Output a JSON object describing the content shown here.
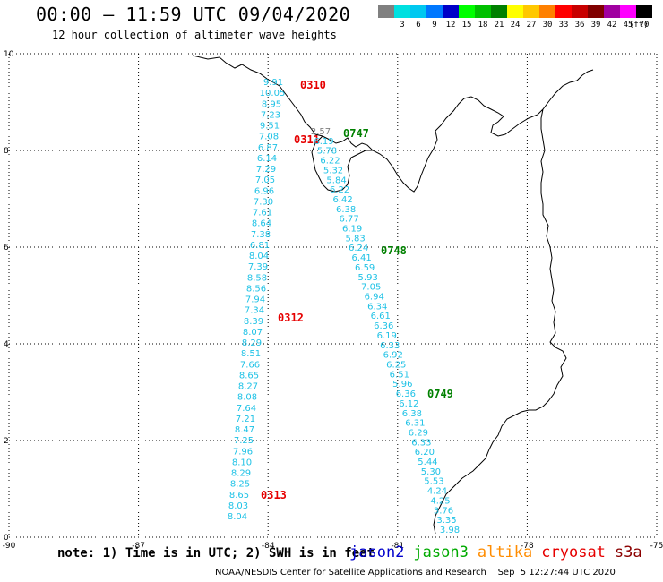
{
  "header": {
    "title": "00:00 — 11:59 UTC 09/04/2020",
    "subtitle": "12 hour collection of altimeter wave heights"
  },
  "legend": {
    "unit": "(ft)",
    "bins": [
      {
        "label": "",
        "color": "#808080"
      },
      {
        "label": "3",
        "color": "#00e0e0"
      },
      {
        "label": "6",
        "color": "#00c8f0"
      },
      {
        "label": "9",
        "color": "#0078ff"
      },
      {
        "label": "12",
        "color": "#0000c8"
      },
      {
        "label": "15",
        "color": "#00ff00"
      },
      {
        "label": "18",
        "color": "#00c000"
      },
      {
        "label": "21",
        "color": "#008000"
      },
      {
        "label": "24",
        "color": "#ffff00"
      },
      {
        "label": "27",
        "color": "#ffc800"
      },
      {
        "label": "30",
        "color": "#ff8000"
      },
      {
        "label": "33",
        "color": "#ff0000"
      },
      {
        "label": "36",
        "color": "#c80000"
      },
      {
        "label": "39",
        "color": "#800000"
      },
      {
        "label": "42",
        "color": "#a000a0"
      },
      {
        "label": "45",
        "color": "#ff00ff"
      },
      {
        "label": "70",
        "color": "#000000"
      }
    ]
  },
  "map": {
    "lon_range": [
      -90,
      -75
    ],
    "lat_range": [
      0,
      10
    ],
    "lon_ticks": [
      "-90",
      "-87",
      "-84",
      "-81",
      "-78",
      "-75"
    ],
    "lat_ticks": [
      "10",
      "8",
      "6",
      "4",
      "2",
      "0"
    ],
    "grid": true
  },
  "tracks": [
    {
      "satellite": "jason3",
      "color": "#1fc2e6",
      "passes": [
        {
          "time": "0310",
          "label_color": "#e60000"
        },
        {
          "time": "0311",
          "label_color": "#e60000"
        },
        {
          "time": "0312",
          "label_color": "#e60000"
        },
        {
          "time": "0313",
          "label_color": "#e60000"
        }
      ],
      "values": [
        "9.91",
        "10.05",
        "8.95",
        "7.23",
        "9.51",
        "7.08",
        "6.87",
        "6.14",
        "7.29",
        "7.05",
        "6.96",
        "7.30",
        "7.61",
        "8.64",
        "7.38",
        "6.81",
        "8.04",
        "7.39",
        "8.58",
        "8.56",
        "7.94",
        "7.34",
        "8.39",
        "8.07",
        "8.29",
        "8.51",
        "7.66",
        "8.65",
        "8.27",
        "8.08",
        "7.64",
        "7.21",
        "8.47",
        "7.25",
        "7.96",
        "8.10",
        "8.29",
        "8.25",
        "8.65",
        "8.03",
        "8.04"
      ]
    },
    {
      "satellite": "cryosat",
      "color": "#1fc2e6",
      "passes": [
        {
          "time": "0747",
          "label_color": "#008000"
        },
        {
          "time": "0748",
          "label_color": "#008000"
        },
        {
          "time": "0749",
          "label_color": "#008000"
        }
      ],
      "values": [
        "2.57",
        "6.19",
        "5.78",
        "6.22",
        "5.32",
        "5.84",
        "6.22",
        "6.42",
        "6.38",
        "6.77",
        "6.19",
        "5.83",
        "6.24",
        "6.41",
        "6.59",
        "5.93",
        "7.05",
        "6.94",
        "6.34",
        "6.61",
        "6.36",
        "6.19",
        "6.33",
        "6.92",
        "6.25",
        "6.51",
        "5.96",
        "6.36",
        "6.12",
        "6.38",
        "6.31",
        "6.29",
        "6.33",
        "6.20",
        "5.44",
        "5.30",
        "5.53",
        "4.24",
        "4.25",
        "3.76",
        "3.35",
        "3.98"
      ]
    }
  ],
  "footer": {
    "note": "note: 1) Time is in UTC; 2) SWH is in feet",
    "satellites": [
      {
        "name": "jason2",
        "color": "#0000cc"
      },
      {
        "name": "jason3",
        "color": "#00aa00"
      },
      {
        "name": "altika",
        "color": "#ff8c00"
      },
      {
        "name": "cryosat",
        "color": "#e60000"
      },
      {
        "name": "s3a",
        "color": "#8b0000"
      }
    ],
    "credit": "NOAA/NESDIS Center for Satellite Applications and Research    Sep  5 12:27:44 UTC 2020"
  }
}
